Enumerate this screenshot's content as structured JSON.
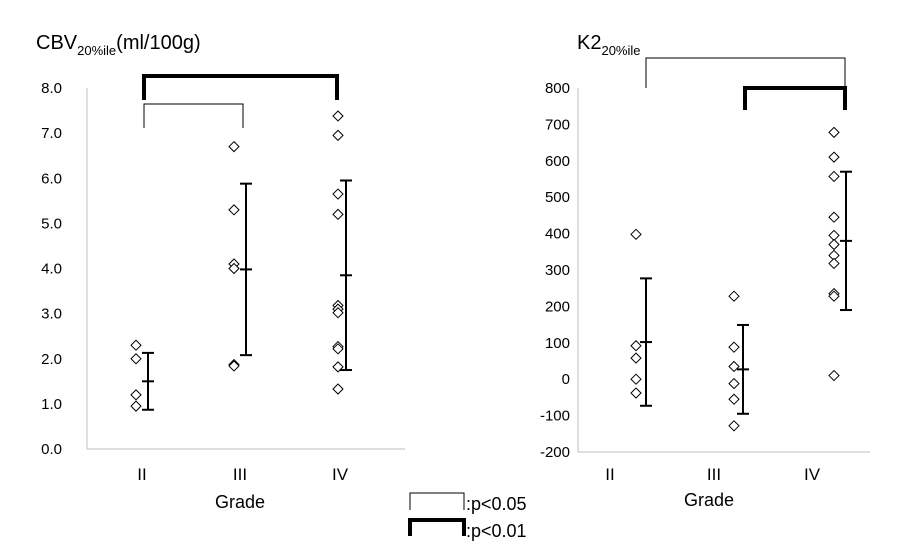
{
  "chart_data": [
    {
      "type": "scatter",
      "title": "CBV",
      "title_sub": "20%ile",
      "title_suffix": "(ml/100g)",
      "xlabel": "Grade",
      "ylabel": "",
      "categories": [
        "II",
        "III",
        "IV"
      ],
      "ylim": [
        0,
        8
      ],
      "yticks": [
        "0.0",
        "1.0",
        "2.0",
        "3.0",
        "4.0",
        "5.0",
        "6.0",
        "7.0",
        "8.0"
      ],
      "grid": false,
      "points": [
        [
          2.3,
          2.0,
          1.2,
          0.95
        ],
        [
          6.7,
          5.3,
          4.1,
          4.0,
          1.87,
          1.84
        ],
        [
          7.38,
          6.95,
          5.65,
          5.2,
          3.18,
          3.1,
          3.02,
          2.27,
          2.22,
          1.82,
          1.33
        ]
      ],
      "mean": [
        1.5,
        3.98,
        3.85
      ],
      "sd": [
        0.63,
        1.9,
        2.1
      ],
      "significance": [
        {
          "from": "II",
          "to": "III",
          "level": "p<0.05"
        },
        {
          "from": "II",
          "to": "IV",
          "level": "p<0.01"
        }
      ]
    },
    {
      "type": "scatter",
      "title": "K2",
      "title_sub": "20%ile",
      "title_suffix": "",
      "xlabel": "Grade",
      "ylabel": "",
      "categories": [
        "II",
        "III",
        "IV"
      ],
      "ylim": [
        -200,
        800
      ],
      "yticks": [
        "-200",
        "-100",
        "0",
        "100",
        "200",
        "300",
        "400",
        "500",
        "600",
        "700",
        "800"
      ],
      "grid": false,
      "points": [
        [
          398,
          92,
          58,
          0,
          -38
        ],
        [
          228,
          88,
          35,
          -12,
          -55,
          -128
        ],
        [
          678,
          610,
          557,
          445,
          395,
          370,
          340,
          318,
          235,
          228,
          10
        ]
      ],
      "mean": [
        102,
        27,
        380
      ],
      "sd": [
        175,
        122,
        190
      ],
      "significance": [
        {
          "from": "II",
          "to": "IV",
          "level": "p<0.05"
        },
        {
          "from": "III",
          "to": "IV",
          "level": "p<0.01"
        }
      ]
    }
  ],
  "legend": [
    {
      "label": ":p<0.05",
      "style": "thin"
    },
    {
      "label": ":p<0.01",
      "style": "thick"
    }
  ]
}
